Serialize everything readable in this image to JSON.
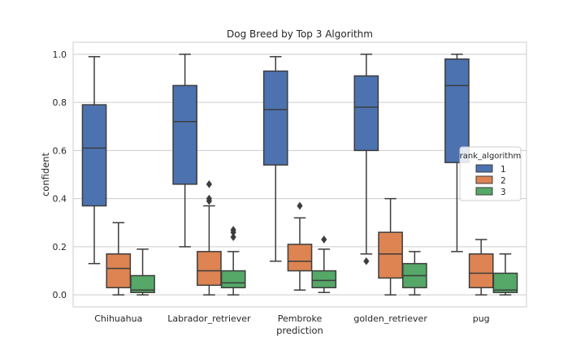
{
  "chart_data": {
    "type": "box",
    "title": "Dog Breed by Top 3 Algorithm",
    "xlabel": "prediction",
    "ylabel": "confident",
    "ylim": [
      -0.05,
      1.05
    ],
    "yticks": [
      "0.0",
      "0.2",
      "0.4",
      "0.6",
      "0.8",
      "1.0"
    ],
    "grid": "horizontal",
    "categories": [
      "Chihuahua",
      "Labrador_retriever",
      "Pembroke",
      "golden_retriever",
      "pug"
    ],
    "legend": {
      "title": "rank_algorithm",
      "position": "right",
      "entries": [
        "1",
        "2",
        "3"
      ]
    },
    "series": [
      {
        "name": "1",
        "color": "#4c72b0",
        "boxes": [
          {
            "min": 0.13,
            "q1": 0.37,
            "median": 0.61,
            "q3": 0.79,
            "max": 0.99,
            "outliers": []
          },
          {
            "min": 0.2,
            "q1": 0.46,
            "median": 0.72,
            "q3": 0.87,
            "max": 1.0,
            "outliers": []
          },
          {
            "min": 0.14,
            "q1": 0.54,
            "median": 0.77,
            "q3": 0.93,
            "max": 0.99,
            "outliers": []
          },
          {
            "min": 0.17,
            "q1": 0.6,
            "median": 0.78,
            "q3": 0.91,
            "max": 1.0,
            "outliers": [
              0.14
            ]
          },
          {
            "min": 0.18,
            "q1": 0.55,
            "median": 0.87,
            "q3": 0.98,
            "max": 1.0,
            "outliers": []
          }
        ]
      },
      {
        "name": "2",
        "color": "#dd8452",
        "boxes": [
          {
            "min": 0.0,
            "q1": 0.03,
            "median": 0.11,
            "q3": 0.17,
            "max": 0.3,
            "outliers": []
          },
          {
            "min": 0.0,
            "q1": 0.04,
            "median": 0.1,
            "q3": 0.18,
            "max": 0.37,
            "outliers": [
              0.39,
              0.4,
              0.46
            ]
          },
          {
            "min": 0.02,
            "q1": 0.1,
            "median": 0.14,
            "q3": 0.21,
            "max": 0.32,
            "outliers": [
              0.37
            ]
          },
          {
            "min": 0.0,
            "q1": 0.07,
            "median": 0.17,
            "q3": 0.26,
            "max": 0.4,
            "outliers": []
          },
          {
            "min": 0.0,
            "q1": 0.03,
            "median": 0.09,
            "q3": 0.17,
            "max": 0.23,
            "outliers": []
          }
        ]
      },
      {
        "name": "3",
        "color": "#55a868",
        "boxes": [
          {
            "min": 0.0,
            "q1": 0.01,
            "median": 0.02,
            "q3": 0.08,
            "max": 0.19,
            "outliers": []
          },
          {
            "min": 0.0,
            "q1": 0.03,
            "median": 0.05,
            "q3": 0.1,
            "max": 0.18,
            "outliers": [
              0.24,
              0.26,
              0.27
            ]
          },
          {
            "min": 0.01,
            "q1": 0.03,
            "median": 0.06,
            "q3": 0.1,
            "max": 0.19,
            "outliers": [
              0.23
            ]
          },
          {
            "min": 0.0,
            "q1": 0.03,
            "median": 0.08,
            "q3": 0.13,
            "max": 0.18,
            "outliers": []
          },
          {
            "min": 0.0,
            "q1": 0.01,
            "median": 0.02,
            "q3": 0.09,
            "max": 0.17,
            "outliers": []
          }
        ]
      }
    ]
  }
}
